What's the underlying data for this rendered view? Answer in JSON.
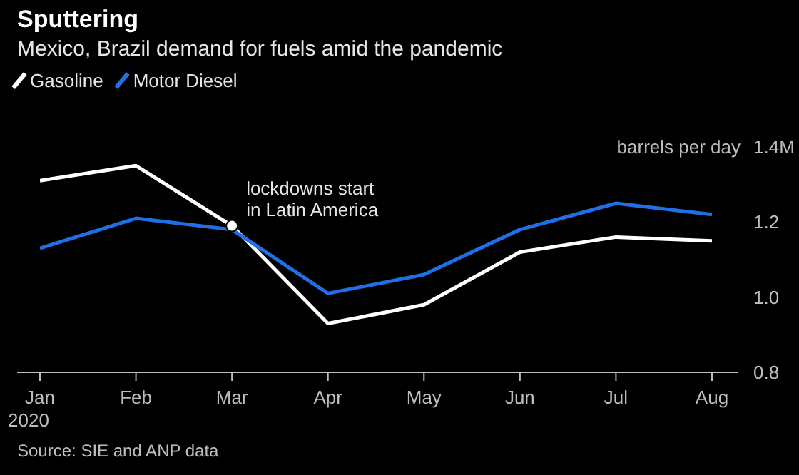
{
  "chart_data": {
    "type": "line",
    "title": "Sputtering",
    "subtitle": "Mexico, Brazil demand for fuels amid the pandemic",
    "ylabel": "barrels per day",
    "categories": [
      "Jan 2020",
      "Feb",
      "Mar",
      "Apr",
      "May",
      "Jun",
      "Jul",
      "Aug"
    ],
    "series": [
      {
        "name": "Gasoline",
        "color": "#ffffff",
        "values": [
          1.31,
          1.35,
          1.19,
          0.93,
          0.98,
          1.12,
          1.16,
          1.15
        ]
      },
      {
        "name": "Motor Diesel",
        "color": "#1f6fe6",
        "values": [
          1.13,
          1.21,
          1.18,
          1.01,
          1.06,
          1.18,
          1.25,
          1.22
        ]
      }
    ],
    "ylim": [
      0.8,
      1.4
    ],
    "yticks": [
      0.8,
      {
        "value": 1.0,
        "label": "1.0"
      },
      1.2,
      {
        "value": 1.4,
        "label": "1.4M"
      }
    ],
    "grid": false,
    "legend": "top left",
    "marker": "none",
    "line_style": "solid",
    "annotations": [
      {
        "text": "lockdowns start in Latin America",
        "x": "Mar",
        "y": 1.19
      },
      "Source: SIE and ANP data"
    ]
  }
}
